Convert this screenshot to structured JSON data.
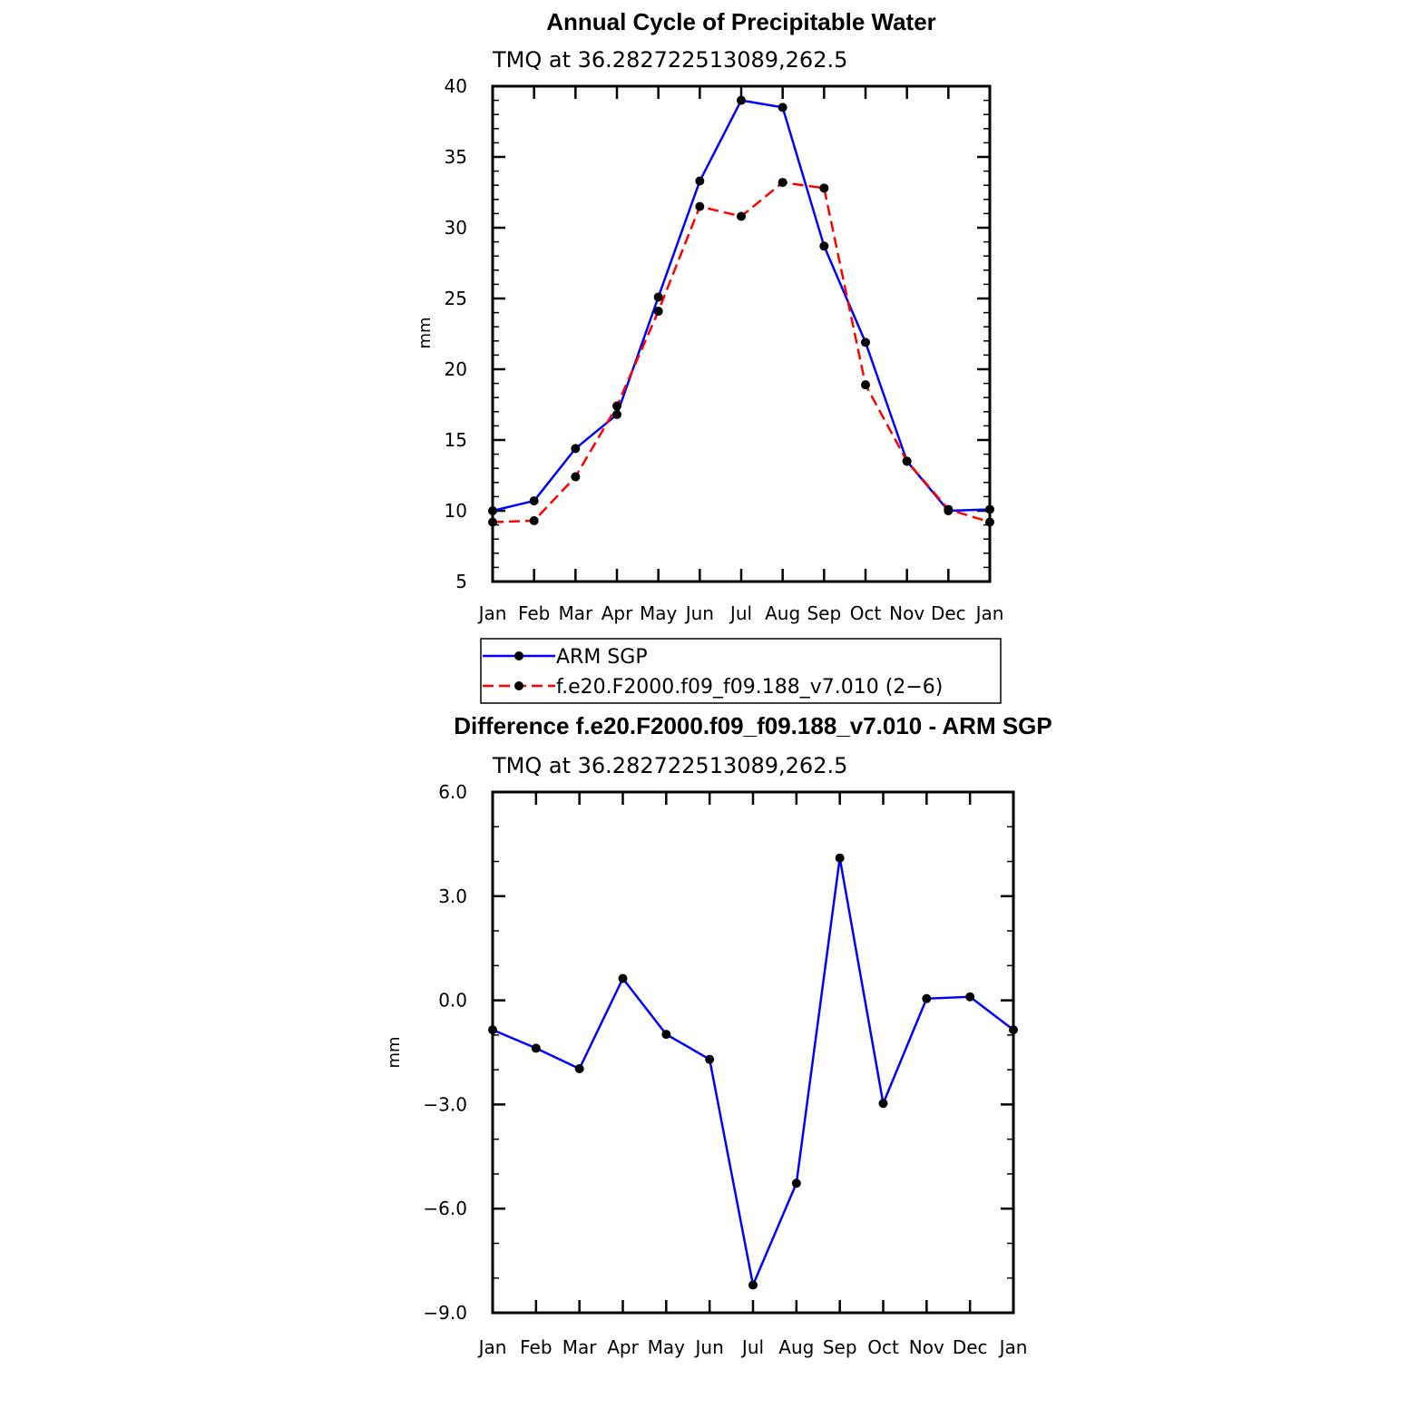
{
  "chart_data": [
    {
      "type": "line",
      "title": "Annual Cycle of Precipitable Water",
      "subtitle": "TMQ at 36.282722513089,262.5",
      "ylabel": "mm",
      "xlabel": "",
      "categories": [
        "Jan",
        "Feb",
        "Mar",
        "Apr",
        "May",
        "Jun",
        "Jul",
        "Aug",
        "Sep",
        "Oct",
        "Nov",
        "Dec",
        "Jan"
      ],
      "ylim": [
        5,
        40
      ],
      "yticks": [
        5,
        10,
        15,
        20,
        25,
        30,
        35,
        40
      ],
      "ytick_labels": [
        "5",
        "10",
        "15",
        "20",
        "25",
        "30",
        "35",
        "40"
      ],
      "series": [
        {
          "name": "ARM SGP",
          "color": "#0000ff",
          "dash": "solid",
          "values": [
            10.0,
            10.7,
            14.4,
            16.8,
            25.1,
            33.3,
            39.0,
            38.5,
            28.7,
            21.9,
            13.5,
            10.0,
            10.1
          ]
        },
        {
          "name": "f.e20.F2000.f09_f09.188_v7.010 (2−6)",
          "color": "#ff0000",
          "dash": "dashed",
          "values": [
            9.2,
            9.3,
            12.4,
            17.4,
            24.1,
            31.5,
            30.8,
            33.2,
            32.8,
            18.9,
            13.5,
            10.1,
            9.2
          ]
        }
      ],
      "legend": "below"
    },
    {
      "type": "line",
      "title": "Difference f.e20.F2000.f09_f09.188_v7.010 - ARM SGP",
      "subtitle": "TMQ at 36.282722513089,262.5",
      "ylabel": "mm",
      "xlabel": "",
      "categories": [
        "Jan",
        "Feb",
        "Mar",
        "Apr",
        "May",
        "Jun",
        "Jul",
        "Aug",
        "Sep",
        "Oct",
        "Nov",
        "Dec",
        "Jan"
      ],
      "ylim": [
        -9.0,
        6.0
      ],
      "yticks": [
        -9.0,
        -6.0,
        -3.0,
        0.0,
        3.0,
        6.0
      ],
      "ytick_labels": [
        "−9.0",
        "−6.0",
        "−3.0",
        "0.0",
        "3.0",
        "6.0"
      ],
      "series": [
        {
          "name": "difference",
          "color": "#0000ff",
          "dash": "solid",
          "values": [
            -0.85,
            -1.38,
            -1.97,
            0.63,
            -0.98,
            -1.7,
            -8.2,
            -5.27,
            4.1,
            -2.97,
            0.05,
            0.1,
            -0.85
          ]
        }
      ]
    }
  ]
}
